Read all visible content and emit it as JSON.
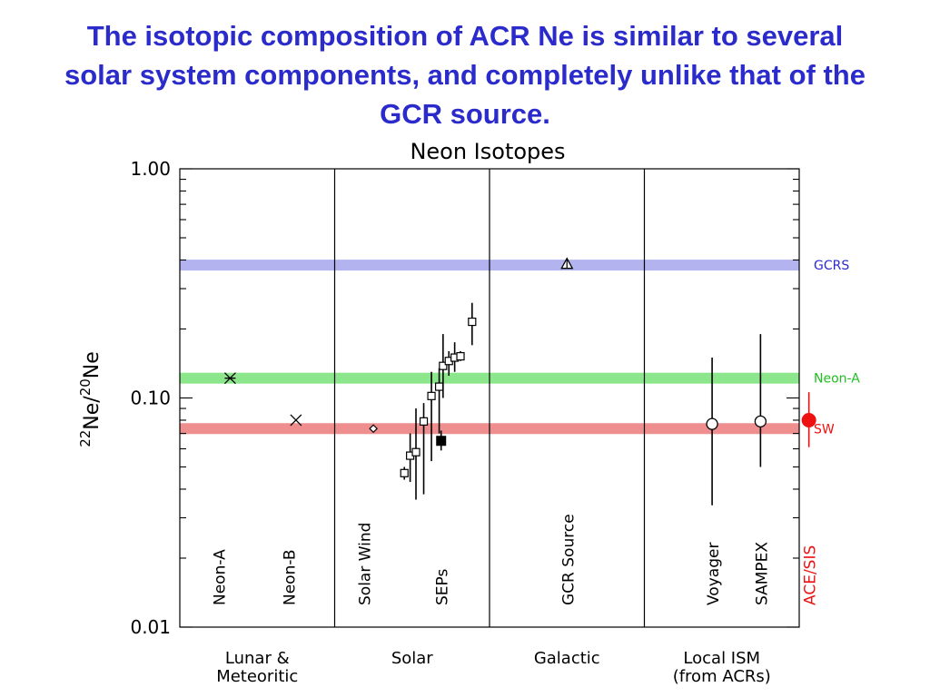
{
  "slide": {
    "title_lines": [
      "The isotopic composition of ACR Ne is similar to several",
      "solar system components, and completely unlike that of the",
      "GCR source."
    ]
  },
  "chart_data": {
    "type": "scatter",
    "title": "Neon Isotopes",
    "ylabel": {
      "num_mass": "22",
      "num_sym": "Ne",
      "slash": "/",
      "den_mass": "20",
      "den_sym": "Ne"
    },
    "yscale": "log",
    "ylim": [
      0.01,
      1.0
    ],
    "y_ticks": [
      {
        "value": 1.0,
        "label": "1.00"
      },
      {
        "value": 0.1,
        "label": "0.10"
      },
      {
        "value": 0.01,
        "label": "0.01"
      }
    ],
    "x_slots": 16,
    "groups": [
      {
        "label": [
          "Lunar &",
          "Meteoritic"
        ],
        "slot_start": 0,
        "slot_end": 4
      },
      {
        "label": [
          "Solar"
        ],
        "slot_start": 4,
        "slot_end": 8
      },
      {
        "label": [
          "Galactic"
        ],
        "slot_start": 8,
        "slot_end": 12
      },
      {
        "label": [
          "Local ISM",
          "(from ACRs)"
        ],
        "slot_start": 12,
        "slot_end": 16
      }
    ],
    "reference_bands": [
      {
        "name": "GCRS",
        "y": 0.38,
        "color": "#b3b3f0",
        "label_color": "#2b2bcc"
      },
      {
        "name": "Neon-A",
        "y": 0.122,
        "color": "#8ce68c",
        "label_color": "#1fbf1f"
      },
      {
        "name": "SW",
        "y": 0.0735,
        "color": "#ee8e8e",
        "label_color": "#ee1111"
      }
    ],
    "categories": [
      {
        "label": "Neon-A",
        "x": 1.0,
        "color": "#000000"
      },
      {
        "label": "Neon-B",
        "x": 2.8,
        "color": "#000000"
      },
      {
        "label": "Solar Wind",
        "x": 4.75,
        "color": "#000000"
      },
      {
        "label": "SEPs",
        "x": 6.75,
        "color": "#000000"
      },
      {
        "label": "GCR Source",
        "x": 10.0,
        "color": "#000000"
      },
      {
        "label": "Voyager",
        "x": 13.75,
        "color": "#000000"
      },
      {
        "label": "SAMPEX",
        "x": 15.0,
        "color": "#000000"
      },
      {
        "label": "ACE/SIS",
        "x": 16.25,
        "color": "#ee1111"
      }
    ],
    "series": [
      {
        "name": "Neon-A",
        "marker": "asterisk",
        "points": [
          {
            "x": 1.3,
            "y": 0.122
          }
        ]
      },
      {
        "name": "Neon-B",
        "marker": "x",
        "points": [
          {
            "x": 3.0,
            "y": 0.08
          }
        ]
      },
      {
        "name": "Solar Wind",
        "marker": "diamond-small",
        "points": [
          {
            "x": 5.0,
            "y": 0.0735
          }
        ]
      },
      {
        "name": "SEPs",
        "marker": "square-open",
        "points": [
          {
            "x": 5.8,
            "y": 0.047,
            "ylo": 0.044,
            "yhi": 0.05
          },
          {
            "x": 5.95,
            "y": 0.056,
            "ylo": 0.043,
            "yhi": 0.07
          },
          {
            "x": 6.1,
            "y": 0.058,
            "ylo": 0.036,
            "yhi": 0.09
          },
          {
            "x": 6.3,
            "y": 0.079,
            "ylo": 0.038,
            "yhi": 0.095
          },
          {
            "x": 6.5,
            "y": 0.102,
            "ylo": 0.053,
            "yhi": 0.13
          },
          {
            "x": 6.7,
            "y": 0.112,
            "ylo": 0.07,
            "yhi": 0.135
          },
          {
            "x": 6.8,
            "y": 0.138,
            "ylo": 0.1,
            "yhi": 0.19
          },
          {
            "x": 6.95,
            "y": 0.145,
            "ylo": 0.125,
            "yhi": 0.16
          },
          {
            "x": 7.1,
            "y": 0.15,
            "ylo": 0.13,
            "yhi": 0.175
          },
          {
            "x": 7.25,
            "y": 0.152,
            "ylo": 0.145,
            "yhi": 0.16
          },
          {
            "x": 7.55,
            "y": 0.215,
            "ylo": 0.17,
            "yhi": 0.26
          }
        ]
      },
      {
        "name": "SEPs",
        "marker": "square-filled",
        "points": [
          {
            "x": 6.75,
            "y": 0.065,
            "ylo": 0.059,
            "yhi": 0.072
          }
        ]
      },
      {
        "name": "GCR Source",
        "marker": "triangle-open",
        "points": [
          {
            "x": 10.0,
            "y": 0.385
          }
        ]
      },
      {
        "name": "Voyager",
        "marker": "circle-open",
        "points": [
          {
            "x": 13.75,
            "y": 0.077,
            "ylo": 0.034,
            "yhi": 0.15
          }
        ]
      },
      {
        "name": "SAMPEX",
        "marker": "circle-open",
        "points": [
          {
            "x": 15.0,
            "y": 0.079,
            "ylo": 0.05,
            "yhi": 0.19
          }
        ]
      },
      {
        "name": "ACE/SIS",
        "marker": "circle-filled",
        "color": "#ee1111",
        "points": [
          {
            "x": 16.25,
            "y": 0.08,
            "ylo": 0.061,
            "yhi": 0.106
          }
        ]
      }
    ]
  }
}
